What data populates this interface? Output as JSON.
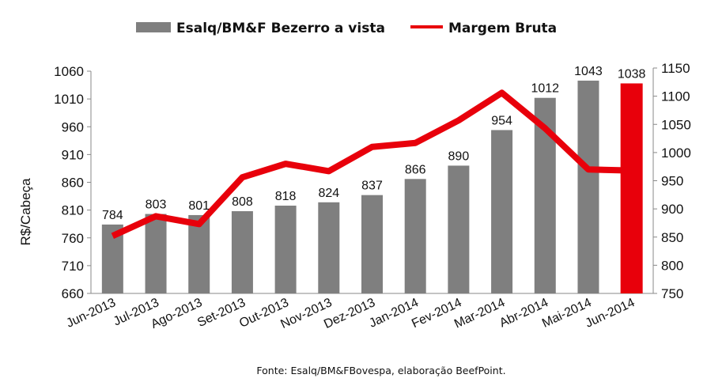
{
  "chart_data": {
    "type": "bar",
    "categories": [
      "Jun-2013",
      "Jul-2013",
      "Ago-2013",
      "Set-2013",
      "Out-2013",
      "Nov-2013",
      "Dez-2013",
      "Jan-2014",
      "Fev-2014",
      "Mar-2014",
      "Abr-2014",
      "Mai-2014",
      "Jun-2014"
    ],
    "series": [
      {
        "name": "Esalq/BM&F Bezerro a vista",
        "type": "bar",
        "axis": "left",
        "color": "#7f7f7f",
        "highlight_last_color": "#e8000b",
        "values": [
          784,
          803,
          801,
          808,
          818,
          824,
          837,
          866,
          890,
          954,
          1012,
          1043,
          1038
        ]
      },
      {
        "name": "Margem Bruta",
        "type": "line",
        "axis": "right",
        "color": "#e8000b",
        "values": [
          852,
          887,
          873,
          956,
          980,
          967,
          1010,
          1017,
          1057,
          1106,
          1043,
          970,
          968
        ]
      }
    ],
    "ylabel": "R$/Cabeça",
    "ylim": [
      660,
      1060
    ],
    "yticks": [
      660,
      710,
      760,
      810,
      860,
      910,
      960,
      1010,
      1060
    ],
    "y2lim": [
      750,
      1150
    ],
    "y2ticks": [
      750,
      800,
      850,
      900,
      950,
      1000,
      1050,
      1100,
      1150
    ],
    "legend_position": "top-center",
    "grid": false,
    "source": "Fonte:  Esalq/BM&FBovespa,  elaboração  BeefPoint."
  }
}
